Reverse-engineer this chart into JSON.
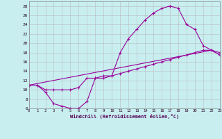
{
  "xlabel": "Windchill (Refroidissement éolien,°C)",
  "bg_color": "#c8eef0",
  "line_color": "#990099",
  "grid_color": "#bbbbbb",
  "xlim": [
    0,
    23
  ],
  "ylim": [
    6,
    29
  ],
  "xticks": [
    0,
    1,
    2,
    3,
    4,
    5,
    6,
    7,
    8,
    9,
    10,
    11,
    12,
    13,
    14,
    15,
    16,
    17,
    18,
    19,
    20,
    21,
    22,
    23
  ],
  "yticks": [
    6,
    8,
    10,
    12,
    14,
    16,
    18,
    20,
    22,
    24,
    26,
    28
  ],
  "line1_x": [
    0,
    1,
    2,
    3,
    4,
    5,
    6,
    7,
    8,
    9,
    10,
    11,
    12,
    13,
    14,
    15,
    16,
    17,
    18,
    19,
    20,
    21,
    22,
    23
  ],
  "line1_y": [
    11,
    11,
    9.5,
    7,
    6.5,
    6,
    6,
    7.5,
    12.5,
    12.5,
    13,
    18,
    21,
    23,
    25,
    26.5,
    27.5,
    28,
    27.5,
    24,
    23,
    19.5,
    18.5,
    18
  ],
  "line2_x": [
    0,
    1,
    2,
    3,
    4,
    5,
    6,
    7,
    8,
    9,
    10,
    11,
    12,
    13,
    14,
    15,
    16,
    17,
    18,
    19,
    20,
    21,
    22,
    23
  ],
  "line2_y": [
    11,
    11,
    10,
    10,
    10,
    10,
    10.5,
    12.5,
    12.5,
    13,
    13,
    13.5,
    14,
    14.5,
    15,
    15.5,
    16,
    16.5,
    17,
    17.5,
    18,
    18.5,
    18.5,
    17.5
  ],
  "line3_x": [
    0,
    22,
    23
  ],
  "line3_y": [
    11,
    18.5,
    17.5
  ]
}
